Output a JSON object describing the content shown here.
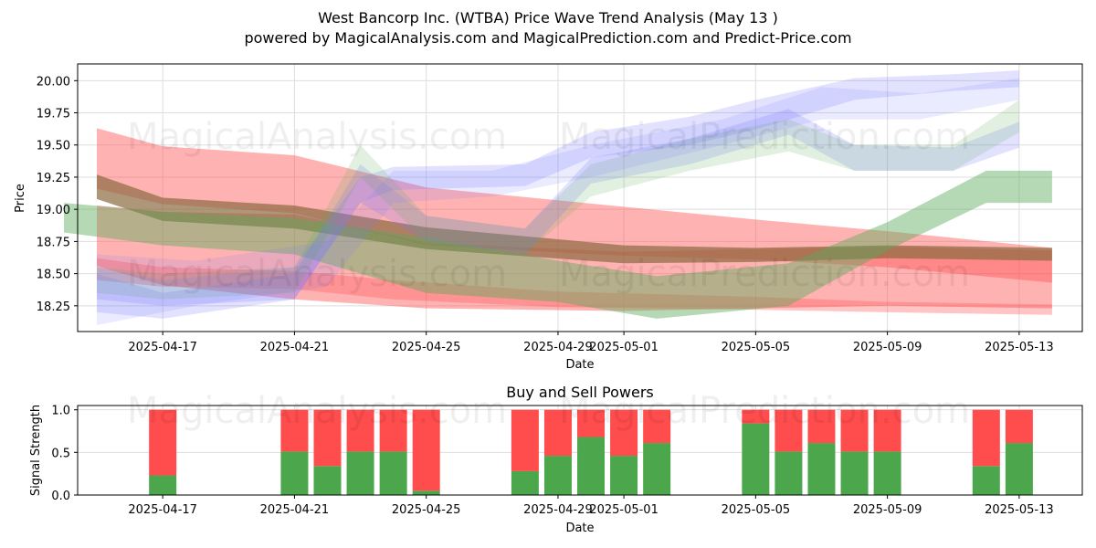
{
  "title": "West Bancorp Inc. (WTBA) Price Wave Trend Analysis (May 13 )",
  "subtitle": "powered by MagicalAnalysis.com and MagicalPrediction.com and Predict-Price.com",
  "watermarks": [
    "MagicalAnalysis.com",
    "MagicalPrediction.com"
  ],
  "colors": {
    "buy": "#4ca64c",
    "sell": "#ff4c4c",
    "blue": "#7a7aff",
    "green": "#5aaa5a",
    "red": "#ff5555",
    "brown": "#8b6a40"
  },
  "chart_data": [
    {
      "type": "area",
      "title": "",
      "xlabel": "Date",
      "ylabel": "Price",
      "xlim": [
        "2025-04-14T10:00",
        "2025-05-14T22:00"
      ],
      "ylim": [
        18.05,
        20.13
      ],
      "grid": true,
      "x_ticks": [
        "2025-04-17",
        "2025-04-21",
        "2025-04-25",
        "2025-04-29",
        "2025-05-01",
        "2025-05-05",
        "2025-05-09",
        "2025-05-13"
      ],
      "y_ticks": [
        18.25,
        18.5,
        18.75,
        19.0,
        19.25,
        19.5,
        19.75,
        20.0
      ],
      "y_tick_labels": [
        "18.25",
        "18.50",
        "18.75",
        "19.00",
        "19.25",
        "19.50",
        "19.75",
        "20.00"
      ],
      "bands": [
        {
          "color": "red",
          "opacity": 0.45,
          "x": [
            "2025-04-15",
            "2025-04-17",
            "2025-04-21",
            "2025-04-25",
            "2025-05-01",
            "2025-05-05",
            "2025-05-09",
            "2025-05-14"
          ],
          "upper": [
            19.63,
            19.49,
            19.42,
            19.17,
            19.02,
            18.92,
            18.83,
            18.7
          ],
          "lower": [
            19.16,
            19.04,
            18.97,
            18.72,
            18.64,
            18.61,
            18.55,
            18.43
          ]
        },
        {
          "color": "red",
          "opacity": 0.45,
          "x": [
            "2025-04-15",
            "2025-04-17",
            "2025-04-21",
            "2025-04-25",
            "2025-05-01",
            "2025-05-05",
            "2025-05-09",
            "2025-05-14"
          ],
          "upper": [
            19.03,
            18.98,
            18.96,
            18.74,
            18.67,
            18.69,
            18.71,
            18.68
          ],
          "lower": [
            18.56,
            18.41,
            18.3,
            18.23,
            18.21,
            18.23,
            18.25,
            18.23
          ]
        },
        {
          "color": "red",
          "opacity": 0.35,
          "x": [
            "2025-04-15",
            "2025-04-17",
            "2025-04-21",
            "2025-04-24",
            "2025-04-29",
            "2025-05-05",
            "2025-05-09",
            "2025-05-14"
          ],
          "upper": [
            18.62,
            18.55,
            18.52,
            18.45,
            18.36,
            18.32,
            18.28,
            18.26
          ],
          "lower": [
            18.45,
            18.4,
            18.38,
            18.3,
            18.24,
            18.22,
            18.2,
            18.18
          ]
        },
        {
          "color": "brown",
          "opacity": 0.7,
          "x": [
            "2025-04-15",
            "2025-04-17",
            "2025-04-21",
            "2025-04-25",
            "2025-05-01",
            "2025-05-05",
            "2025-05-09",
            "2025-05-14"
          ],
          "upper": [
            19.27,
            19.09,
            19.03,
            18.86,
            18.72,
            18.7,
            18.72,
            18.7
          ],
          "lower": [
            19.08,
            18.91,
            18.85,
            18.69,
            18.58,
            18.59,
            18.62,
            18.6
          ]
        },
        {
          "color": "green",
          "opacity": 0.45,
          "x": [
            "2025-04-14",
            "2025-04-17",
            "2025-04-21",
            "2025-04-25",
            "2025-04-29",
            "2025-05-02",
            "2025-05-06",
            "2025-05-09",
            "2025-05-12",
            "2025-05-14"
          ],
          "upper": [
            19.05,
            18.98,
            18.93,
            18.78,
            18.6,
            18.48,
            18.58,
            18.9,
            19.3,
            19.3
          ],
          "lower": [
            18.82,
            18.72,
            18.65,
            18.35,
            18.28,
            18.15,
            18.25,
            18.68,
            19.05,
            19.05
          ]
        },
        {
          "color": "blue",
          "opacity": 0.22,
          "x": [
            "2025-04-15",
            "2025-04-17",
            "2025-04-21",
            "2025-04-23",
            "2025-04-24",
            "2025-04-28",
            "2025-04-30",
            "2025-05-03",
            "2025-05-05",
            "2025-05-08",
            "2025-05-11",
            "2025-05-13"
          ],
          "upper": [
            18.55,
            18.45,
            18.55,
            19.25,
            19.33,
            19.35,
            19.6,
            19.72,
            19.85,
            20.02,
            20.05,
            20.08
          ],
          "lower": [
            18.3,
            18.25,
            18.3,
            19.05,
            19.15,
            19.18,
            19.4,
            19.5,
            19.62,
            19.85,
            19.92,
            19.95
          ]
        },
        {
          "color": "blue",
          "opacity": 0.22,
          "x": [
            "2025-04-15",
            "2025-04-17",
            "2025-04-21",
            "2025-04-23",
            "2025-04-25",
            "2025-04-28",
            "2025-04-30",
            "2025-05-03",
            "2025-05-06",
            "2025-05-08",
            "2025-05-11",
            "2025-05-13"
          ],
          "upper": [
            18.5,
            18.35,
            18.5,
            19.35,
            18.95,
            18.85,
            19.4,
            19.55,
            19.78,
            19.5,
            19.48,
            19.68
          ],
          "lower": [
            18.2,
            18.15,
            18.3,
            19.05,
            18.75,
            18.65,
            19.2,
            19.35,
            19.58,
            19.3,
            19.3,
            19.48
          ]
        },
        {
          "color": "green",
          "opacity": 0.18,
          "x": [
            "2025-04-15",
            "2025-04-17",
            "2025-04-21",
            "2025-04-23",
            "2025-04-25",
            "2025-04-28",
            "2025-04-30",
            "2025-05-03",
            "2025-05-06",
            "2025-05-08",
            "2025-05-11",
            "2025-05-13"
          ],
          "upper": [
            18.55,
            18.5,
            18.55,
            19.5,
            18.95,
            18.85,
            19.35,
            19.55,
            19.7,
            19.5,
            19.5,
            19.85
          ],
          "lower": [
            18.35,
            18.3,
            18.35,
            19.25,
            18.75,
            18.65,
            19.1,
            19.3,
            19.45,
            19.3,
            19.3,
            19.6
          ]
        },
        {
          "color": "blue",
          "opacity": 0.15,
          "x": [
            "2025-04-15",
            "2025-04-18",
            "2025-04-22",
            "2025-04-24",
            "2025-04-27",
            "2025-04-30",
            "2025-05-04",
            "2025-05-07",
            "2025-05-10",
            "2025-05-13"
          ],
          "upper": [
            18.65,
            18.6,
            18.75,
            19.3,
            19.3,
            19.5,
            19.7,
            19.95,
            19.9,
            20.02
          ],
          "lower": [
            18.1,
            18.25,
            18.4,
            19.05,
            19.1,
            19.25,
            19.5,
            19.7,
            19.7,
            19.85
          ]
        }
      ]
    },
    {
      "type": "bar",
      "title": "Buy and Sell Powers",
      "xlabel": "Date",
      "ylabel": "Signal Strength",
      "ylim": [
        0,
        1.05
      ],
      "grid": true,
      "x_ticks": [
        "2025-04-17",
        "2025-04-21",
        "2025-04-25",
        "2025-04-29",
        "2025-05-01",
        "2025-05-05",
        "2025-05-09",
        "2025-05-13"
      ],
      "y_ticks": [
        0.0,
        0.5,
        1.0
      ],
      "y_tick_labels": [
        "0.0",
        "0.5",
        "1.0"
      ],
      "categories": [
        "2025-04-17",
        "2025-04-21",
        "2025-04-22",
        "2025-04-23",
        "2025-04-24",
        "2025-04-25",
        "2025-04-28",
        "2025-04-29",
        "2025-04-30",
        "2025-05-01",
        "2025-05-02",
        "2025-05-05",
        "2025-05-06",
        "2025-05-07",
        "2025-05-08",
        "2025-05-09",
        "2025-05-12",
        "2025-05-13"
      ],
      "series": [
        {
          "values": [
            0.23,
            0.51,
            0.34,
            0.51,
            0.51,
            0.05,
            0.28,
            0.46,
            0.68,
            0.46,
            0.61,
            0.84,
            0.51,
            0.61,
            0.51,
            0.51,
            0.34,
            0.61
          ]
        },
        {
          "values": [
            0.77,
            0.49,
            0.66,
            0.49,
            0.49,
            0.95,
            0.72,
            0.54,
            0.32,
            0.54,
            0.39,
            0.16,
            0.49,
            0.39,
            0.49,
            0.49,
            0.66,
            0.39
          ]
        }
      ]
    }
  ]
}
